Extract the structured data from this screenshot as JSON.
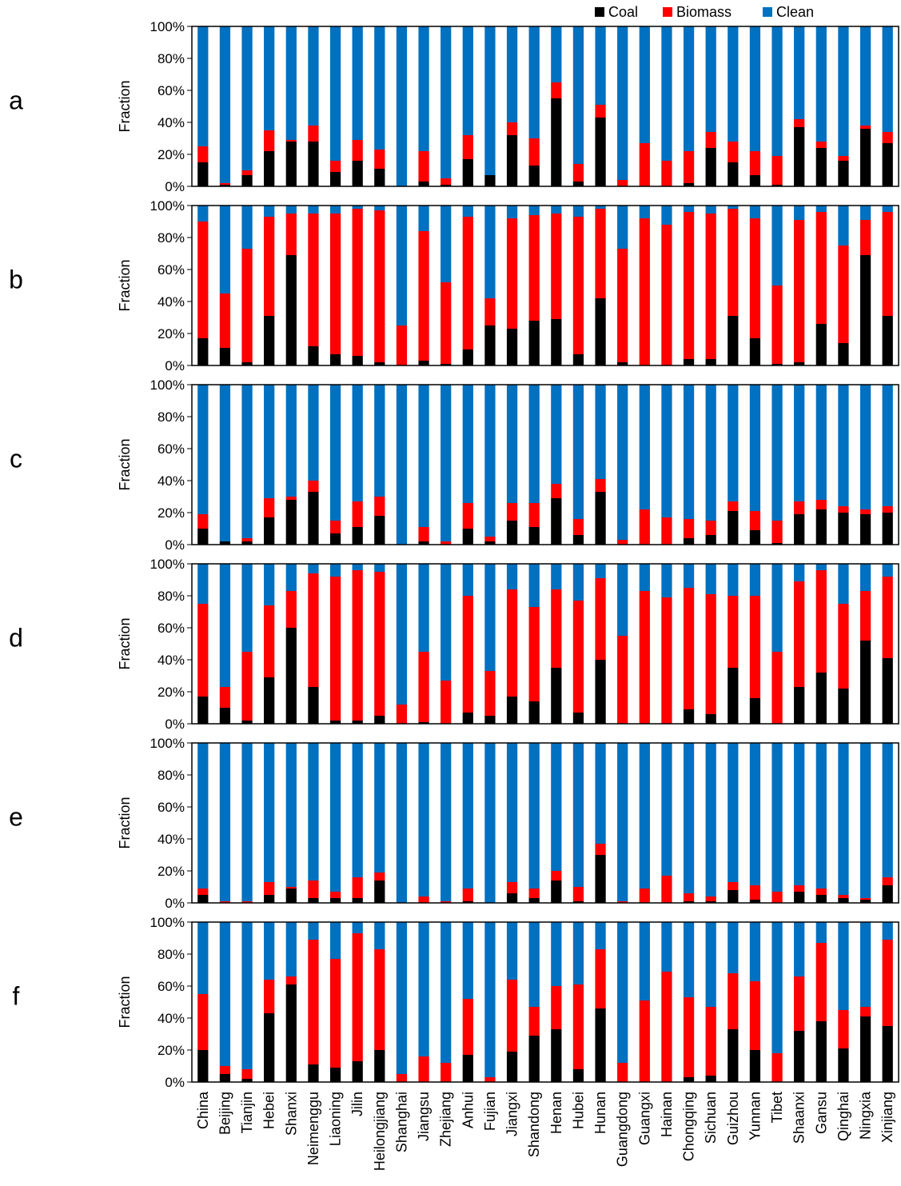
{
  "figure": {
    "legend": [
      {
        "label": "Coal",
        "color": "#000000"
      },
      {
        "label": "Biomass",
        "color": "#ff0000"
      },
      {
        "label": "Clean",
        "color": "#0070c0"
      }
    ]
  },
  "chart_data": [
    {
      "panel": "a",
      "type": "bar",
      "stacked": true,
      "ylabel": "Fraction",
      "ylim": [
        0,
        100
      ],
      "yticks": [
        "0%",
        "20%",
        "40%",
        "60%",
        "80%",
        "100%"
      ],
      "legend_position": "top-right",
      "categories": [
        "China",
        "Beijing",
        "Tianjin",
        "Hebei",
        "Shanxi",
        "Neimenggu",
        "Liaoning",
        "Jilin",
        "Heilongjiang",
        "Shanghai",
        "Jiangsu",
        "Zhejiang",
        "Anhui",
        "Fujian",
        "Jiangxi",
        "Shandong",
        "Henan",
        "Hubei",
        "Hunan",
        "Guangdong",
        "Guangxi",
        "Hainan",
        "Chongqing",
        "Sichuan",
        "Guizhou",
        "Yunnan",
        "Tibet",
        "Shaanxi",
        "Gansu",
        "Qinghai",
        "Ningxia",
        "Xinjiang"
      ],
      "series": [
        {
          "name": "Coal",
          "values": [
            15,
            1,
            7,
            22,
            28,
            28,
            9,
            16,
            11,
            0,
            3,
            1,
            17,
            7,
            32,
            13,
            55,
            3,
            43,
            0,
            0,
            0,
            2,
            24,
            15,
            7,
            1,
            37,
            24,
            16,
            36,
            27
          ]
        },
        {
          "name": "Biomass",
          "values": [
            10,
            1,
            3,
            13,
            1,
            10,
            7,
            13,
            12,
            0,
            19,
            4,
            15,
            0,
            8,
            17,
            10,
            11,
            8,
            4,
            27,
            16,
            20,
            10,
            13,
            15,
            18,
            5,
            4,
            3,
            2,
            7
          ]
        },
        {
          "name": "Clean",
          "values": [
            75,
            98,
            90,
            65,
            71,
            62,
            84,
            71,
            77,
            100,
            78,
            95,
            68,
            93,
            60,
            70,
            35,
            86,
            49,
            96,
            73,
            84,
            78,
            66,
            72,
            78,
            81,
            58,
            72,
            81,
            62,
            66
          ]
        }
      ]
    },
    {
      "panel": "b",
      "type": "bar",
      "stacked": true,
      "ylabel": "Fraction",
      "ylim": [
        0,
        100
      ],
      "yticks": [
        "0%",
        "20%",
        "40%",
        "60%",
        "80%",
        "100%"
      ],
      "categories": [
        "China",
        "Beijing",
        "Tianjin",
        "Hebei",
        "Shanxi",
        "Neimenggu",
        "Liaoning",
        "Jilin",
        "Heilongjiang",
        "Shanghai",
        "Jiangsu",
        "Zhejiang",
        "Anhui",
        "Fujian",
        "Jiangxi",
        "Shandong",
        "Henan",
        "Hubei",
        "Hunan",
        "Guangdong",
        "Guangxi",
        "Hainan",
        "Chongqing",
        "Sichuan",
        "Guizhou",
        "Yunnan",
        "Tibet",
        "Shaanxi",
        "Gansu",
        "Qinghai",
        "Ningxia",
        "Xinjiang"
      ],
      "series": [
        {
          "name": "Coal",
          "values": [
            17,
            11,
            2,
            31,
            69,
            12,
            7,
            6,
            2,
            0,
            3,
            1,
            10,
            25,
            23,
            28,
            29,
            7,
            42,
            2,
            0,
            0,
            4,
            4,
            31,
            17,
            1,
            2,
            26,
            14,
            69,
            31
          ]
        },
        {
          "name": "Biomass",
          "values": [
            73,
            34,
            71,
            62,
            26,
            83,
            88,
            92,
            95,
            25,
            81,
            51,
            83,
            17,
            69,
            66,
            66,
            86,
            56,
            71,
            92,
            88,
            92,
            91,
            67,
            75,
            49,
            89,
            70,
            61,
            22,
            65
          ]
        },
        {
          "name": "Clean",
          "values": [
            10,
            55,
            27,
            7,
            5,
            5,
            5,
            2,
            3,
            75,
            16,
            48,
            7,
            58,
            8,
            6,
            5,
            7,
            2,
            27,
            8,
            12,
            4,
            5,
            2,
            8,
            50,
            9,
            4,
            25,
            9,
            4
          ]
        }
      ]
    },
    {
      "panel": "c",
      "type": "bar",
      "stacked": true,
      "ylabel": "Fraction",
      "ylim": [
        0,
        100
      ],
      "yticks": [
        "0%",
        "20%",
        "40%",
        "60%",
        "80%",
        "100%"
      ],
      "categories": [
        "China",
        "Beijing",
        "Tianjin",
        "Hebei",
        "Shanxi",
        "Neimenggu",
        "Liaoning",
        "Jilin",
        "Heilongjiang",
        "Shanghai",
        "Jiangsu",
        "Zhejiang",
        "Anhui",
        "Fujian",
        "Jiangxi",
        "Shandong",
        "Henan",
        "Hubei",
        "Hunan",
        "Guangdong",
        "Guangxi",
        "Hainan",
        "Chongqing",
        "Sichuan",
        "Guizhou",
        "Yunnan",
        "Tibet",
        "Shaanxi",
        "Gansu",
        "Qinghai",
        "Ningxia",
        "Xinjiang"
      ],
      "series": [
        {
          "name": "Coal",
          "values": [
            10,
            2,
            2,
            17,
            28,
            33,
            7,
            11,
            18,
            0,
            2,
            0,
            10,
            2,
            15,
            11,
            29,
            6,
            33,
            0,
            0,
            0,
            4,
            6,
            21,
            9,
            1,
            19,
            22,
            20,
            19,
            20
          ]
        },
        {
          "name": "Biomass",
          "values": [
            9,
            0,
            2,
            12,
            2,
            7,
            8,
            16,
            12,
            0,
            9,
            2,
            16,
            3,
            11,
            15,
            9,
            10,
            8,
            3,
            22,
            17,
            12,
            9,
            6,
            12,
            14,
            8,
            6,
            4,
            3,
            4
          ]
        },
        {
          "name": "Clean",
          "values": [
            81,
            98,
            96,
            71,
            70,
            60,
            85,
            73,
            70,
            100,
            89,
            98,
            74,
            95,
            74,
            74,
            62,
            84,
            59,
            97,
            78,
            83,
            84,
            85,
            73,
            79,
            85,
            73,
            72,
            76,
            78,
            76
          ]
        }
      ]
    },
    {
      "panel": "d",
      "type": "bar",
      "stacked": true,
      "ylabel": "Fraction",
      "ylim": [
        0,
        100
      ],
      "yticks": [
        "0%",
        "20%",
        "40%",
        "60%",
        "80%",
        "100%"
      ],
      "categories": [
        "China",
        "Beijing",
        "Tianjin",
        "Hebei",
        "Shanxi",
        "Neimenggu",
        "Liaoning",
        "Jilin",
        "Heilongjiang",
        "Shanghai",
        "Jiangsu",
        "Zhejiang",
        "Anhui",
        "Fujian",
        "Jiangxi",
        "Shandong",
        "Henan",
        "Hubei",
        "Hunan",
        "Guangdong",
        "Guangxi",
        "Hainan",
        "Chongqing",
        "Sichuan",
        "Guizhou",
        "Yunnan",
        "Tibet",
        "Shaanxi",
        "Gansu",
        "Qinghai",
        "Ningxia",
        "Xinjiang"
      ],
      "series": [
        {
          "name": "Coal",
          "values": [
            17,
            10,
            2,
            29,
            60,
            23,
            2,
            2,
            5,
            0,
            1,
            0,
            7,
            5,
            17,
            14,
            35,
            7,
            40,
            0,
            0,
            0,
            9,
            6,
            35,
            16,
            0,
            23,
            32,
            22,
            52,
            41
          ]
        },
        {
          "name": "Biomass",
          "values": [
            58,
            13,
            43,
            45,
            23,
            71,
            90,
            94,
            90,
            12,
            44,
            27,
            73,
            28,
            67,
            59,
            49,
            70,
            51,
            55,
            83,
            79,
            76,
            75,
            45,
            64,
            45,
            66,
            64,
            53,
            31,
            51
          ]
        },
        {
          "name": "Clean",
          "values": [
            25,
            77,
            55,
            26,
            17,
            6,
            8,
            4,
            5,
            88,
            55,
            73,
            20,
            67,
            16,
            27,
            16,
            23,
            9,
            45,
            17,
            21,
            15,
            19,
            20,
            20,
            55,
            11,
            4,
            25,
            17,
            8
          ]
        }
      ]
    },
    {
      "panel": "e",
      "type": "bar",
      "stacked": true,
      "ylabel": "Fraction",
      "ylim": [
        0,
        100
      ],
      "yticks": [
        "0%",
        "20%",
        "40%",
        "60%",
        "80%",
        "100%"
      ],
      "categories": [
        "China",
        "Beijing",
        "Tianjin",
        "Hebei",
        "Shanxi",
        "Neimenggu",
        "Liaoning",
        "Jilin",
        "Heilongjiang",
        "Shanghai",
        "Jiangsu",
        "Zhejiang",
        "Anhui",
        "Fujian",
        "Jiangxi",
        "Shandong",
        "Henan",
        "Hubei",
        "Hunan",
        "Guangdong",
        "Guangxi",
        "Hainan",
        "Chongqing",
        "Sichuan",
        "Guizhou",
        "Yunnan",
        "Tibet",
        "Shaanxi",
        "Gansu",
        "Qinghai",
        "Ningxia",
        "Xinjiang"
      ],
      "series": [
        {
          "name": "Coal",
          "values": [
            5,
            0,
            0,
            5,
            9,
            3,
            3,
            3,
            14,
            0,
            0,
            0,
            1,
            0,
            6,
            3,
            14,
            1,
            30,
            0,
            0,
            0,
            1,
            1,
            8,
            2,
            0,
            7,
            5,
            3,
            2,
            11
          ]
        },
        {
          "name": "Biomass",
          "values": [
            4,
            1,
            1,
            8,
            1,
            11,
            4,
            13,
            5,
            0,
            4,
            1,
            8,
            0,
            7,
            6,
            6,
            9,
            7,
            1,
            9,
            17,
            5,
            3,
            5,
            9,
            7,
            4,
            4,
            2,
            1,
            5
          ]
        },
        {
          "name": "Clean",
          "values": [
            91,
            99,
            99,
            87,
            90,
            86,
            93,
            84,
            81,
            100,
            96,
            99,
            91,
            100,
            87,
            91,
            80,
            90,
            63,
            99,
            91,
            83,
            94,
            96,
            87,
            89,
            93,
            89,
            91,
            95,
            97,
            84
          ]
        }
      ]
    },
    {
      "panel": "f",
      "type": "bar",
      "stacked": true,
      "ylabel": "Fraction",
      "ylim": [
        0,
        100
      ],
      "yticks": [
        "0%",
        "20%",
        "40%",
        "60%",
        "80%",
        "100%"
      ],
      "categories": [
        "China",
        "Beijing",
        "Tianjin",
        "Hebei",
        "Shanxi",
        "Neimenggu",
        "Liaoning",
        "Jilin",
        "Heilongjiang",
        "Shanghai",
        "Jiangsu",
        "Zhejiang",
        "Anhui",
        "Fujian",
        "Jiangxi",
        "Shandong",
        "Henan",
        "Hubei",
        "Hunan",
        "Guangdong",
        "Guangxi",
        "Hainan",
        "Chongqing",
        "Sichuan",
        "Guizhou",
        "Yunnan",
        "Tibet",
        "Shaanxi",
        "Gansu",
        "Qinghai",
        "Ningxia",
        "Xinjiang"
      ],
      "series": [
        {
          "name": "Coal",
          "values": [
            20,
            5,
            2,
            43,
            61,
            11,
            9,
            13,
            20,
            0,
            0,
            0,
            17,
            0,
            19,
            29,
            33,
            8,
            46,
            0,
            0,
            0,
            3,
            4,
            33,
            20,
            0,
            32,
            38,
            21,
            41,
            35
          ]
        },
        {
          "name": "Biomass",
          "values": [
            35,
            5,
            6,
            21,
            5,
            78,
            68,
            80,
            63,
            5,
            16,
            12,
            35,
            3,
            45,
            18,
            27,
            53,
            37,
            12,
            51,
            69,
            50,
            43,
            35,
            43,
            18,
            34,
            49,
            24,
            6,
            54
          ]
        },
        {
          "name": "Clean",
          "values": [
            45,
            90,
            92,
            36,
            34,
            11,
            23,
            7,
            17,
            95,
            84,
            88,
            48,
            97,
            36,
            53,
            40,
            39,
            17,
            88,
            49,
            31,
            47,
            53,
            32,
            37,
            82,
            34,
            13,
            55,
            53,
            11
          ]
        }
      ]
    }
  ]
}
